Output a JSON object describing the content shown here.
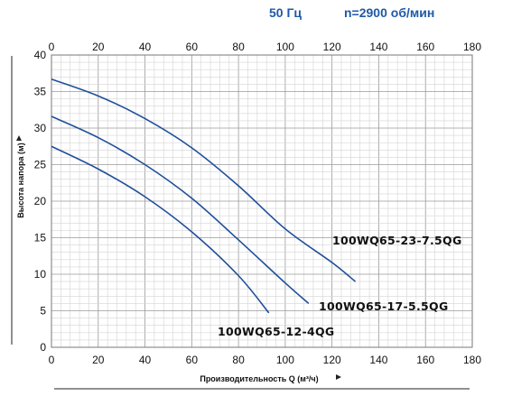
{
  "header": {
    "frequency": "50 Гц",
    "speed": "n=2900 об/мин"
  },
  "colors": {
    "header_text": "#1f5aa6",
    "curve": "#1f4f9a",
    "grid_minor": "#d4d4d4",
    "grid_major": "#9a9a9a",
    "axis_text": "#111111"
  },
  "chart_data": {
    "type": "line",
    "title": "",
    "xlabel": "Производительность Q (м³/ч)",
    "ylabel": "Высота напора (м)",
    "xlim": [
      0,
      180
    ],
    "ylim": [
      0,
      40
    ],
    "x_ticks": [
      "0",
      "20",
      "40",
      "60",
      "80",
      "100",
      "120",
      "140",
      "160",
      "180"
    ],
    "x_ticks_top": [
      "0",
      "20",
      "40",
      "60",
      "80",
      "100",
      "120",
      "140",
      "160",
      "180"
    ],
    "y_ticks": [
      "0",
      "5",
      "10",
      "15",
      "20",
      "25",
      "30",
      "35",
      "40"
    ],
    "grid": true,
    "grid_minor_step": {
      "x": 4,
      "y": 1
    },
    "series": [
      {
        "name": "100WQ65-23-7.5QG",
        "x": [
          0,
          20,
          40,
          60,
          80,
          100,
          120,
          130
        ],
        "y": [
          36.7,
          34.4,
          31.3,
          27.3,
          22.1,
          16.2,
          11.6,
          9.0
        ]
      },
      {
        "name": "100WQ65-17-5.5QG",
        "x": [
          0,
          20,
          40,
          60,
          80,
          100,
          110
        ],
        "y": [
          31.6,
          28.7,
          25.0,
          20.4,
          14.7,
          8.8,
          6.0
        ]
      },
      {
        "name": "100WQ65-12-4QG",
        "x": [
          0,
          20,
          40,
          60,
          80,
          93
        ],
        "y": [
          27.5,
          24.4,
          20.6,
          15.8,
          9.8,
          4.7
        ]
      }
    ]
  }
}
